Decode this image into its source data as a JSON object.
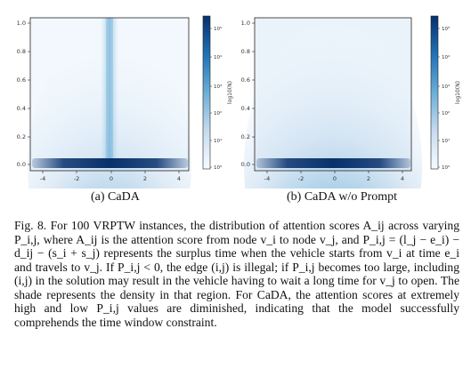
{
  "figure": {
    "subcaptions": [
      "(a) CaDA",
      "(b) CaDA w/o Prompt"
    ],
    "caption_label": "Fig. 8.",
    "caption_text": "For 100 VRPTW instances, the distribution of attention scores A_ij across varying P_i,j, where A_ij is the attention score from node v_i to node v_j, and P_i,j = (l_j − e_i) − d_ij − (s_i + s_j) represents the surplus time when the vehicle starts from v_i at time e_i and travels to v_j. If P_i,j < 0, the edge (i,j) is illegal; if P_i,j becomes too large, including (i,j) in the solution may result in the vehicle having to wait a long time for v_j to open. The shade represents the density in that region. For CaDA, the attention scores at extremely high and low P_i,j values are diminished, indicating that the model successfully comprehends the time window constraint."
  },
  "chart_data": [
    {
      "type": "heatmap",
      "subtitle": "(a) CaDA",
      "xlim": [
        -4.8,
        4.8
      ],
      "ylim": [
        -0.05,
        1.05
      ],
      "x_ticks": [
        -4,
        -2,
        0,
        2,
        4
      ],
      "y_ticks": [
        "0.0",
        "0.2",
        "0.4",
        "0.6",
        "0.8",
        "1.0"
      ],
      "colorbar": {
        "label": "log10(N)",
        "ticks": [
          "10⁰",
          "10¹",
          "10²",
          "10³",
          "10⁴",
          "10⁵"
        ],
        "scale": "log"
      },
      "colormap": [
        "#f7fbff",
        "#c6dbef",
        "#6baed6",
        "#2171b5",
        "#08306b"
      ],
      "density": {
        "peak_x": 0,
        "band_y": 0.0,
        "x_spread": 1.6,
        "spike_at_x0": true
      }
    },
    {
      "type": "heatmap",
      "subtitle": "(b) CaDA w/o Prompt",
      "xlim": [
        -4.8,
        4.8
      ],
      "ylim": [
        -0.05,
        1.05
      ],
      "x_ticks": [
        -4,
        -2,
        0,
        2,
        4
      ],
      "y_ticks": [
        "0.0",
        "0.2",
        "0.4",
        "0.6",
        "0.8",
        "1.0"
      ],
      "colorbar": {
        "label": "log10(N)",
        "ticks": [
          "10⁰",
          "10¹",
          "10²",
          "10³",
          "10⁴",
          "10⁵"
        ],
        "scale": "log"
      },
      "colormap": [
        "#f7fbff",
        "#c6dbef",
        "#6baed6",
        "#2171b5",
        "#08306b"
      ],
      "density": {
        "peak_x": 0,
        "band_y": 0.0,
        "x_spread": 1.9,
        "spike_at_x0": false
      }
    }
  ]
}
